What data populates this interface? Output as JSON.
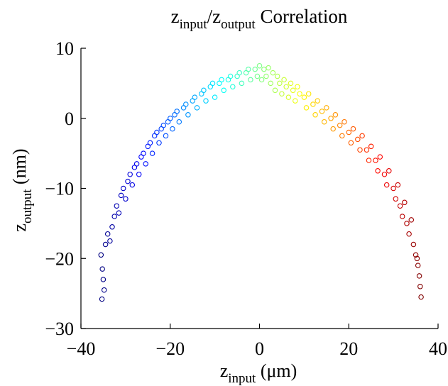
{
  "chart_data": {
    "type": "scatter",
    "title": {
      "base1": "z",
      "sub1": "input",
      "mid": "/z",
      "sub2": "output",
      "tail": " Correlation"
    },
    "xlabel": {
      "base": "z",
      "sub": "input",
      "tail": " (μm)"
    },
    "ylabel": {
      "base": "z",
      "sub": "output",
      "tail": " (nm)"
    },
    "xlim": [
      -40,
      40
    ],
    "ylim": [
      -30,
      10
    ],
    "xticks": [
      -40,
      -20,
      0,
      20,
      40
    ],
    "yticks": [
      -30,
      -20,
      -10,
      0,
      10
    ],
    "xtick_labels": [
      "−40",
      "−20",
      "0",
      "20",
      "40"
    ],
    "ytick_labels": [
      "−30",
      "−20",
      "−10",
      "0",
      "10"
    ],
    "grid": false,
    "legend": "none",
    "marker": "open-circle",
    "colormap": "jet (color follows x)",
    "points": [
      [
        -35.5,
        -19.5
      ],
      [
        -35.2,
        -21.5
      ],
      [
        -35.0,
        -23.0
      ],
      [
        -34.8,
        -24.5
      ],
      [
        -35.3,
        -25.8
      ],
      [
        -34.5,
        -18.0
      ],
      [
        -34.0,
        -16.5
      ],
      [
        -33.5,
        -17.5
      ],
      [
        -33.0,
        -15.5
      ],
      [
        -32.5,
        -14.0
      ],
      [
        -32.0,
        -12.5
      ],
      [
        -31.5,
        -13.5
      ],
      [
        -31.0,
        -11.0
      ],
      [
        -30.5,
        -10.0
      ],
      [
        -30.0,
        -11.5
      ],
      [
        -29.5,
        -9.0
      ],
      [
        -29.0,
        -8.0
      ],
      [
        -28.5,
        -9.5
      ],
      [
        -28.0,
        -7.0
      ],
      [
        -27.5,
        -6.5
      ],
      [
        -27.0,
        -8.0
      ],
      [
        -26.5,
        -5.5
      ],
      [
        -26.0,
        -5.0
      ],
      [
        -25.5,
        -6.5
      ],
      [
        -25.0,
        -4.0
      ],
      [
        -24.5,
        -3.5
      ],
      [
        -24.0,
        -5.0
      ],
      [
        -23.5,
        -2.5
      ],
      [
        -23.0,
        -2.0
      ],
      [
        -22.5,
        -3.5
      ],
      [
        -22.0,
        -1.5
      ],
      [
        -21.5,
        -1.0
      ],
      [
        -21.0,
        -2.5
      ],
      [
        -20.5,
        -0.5
      ],
      [
        -20.0,
        0.0
      ],
      [
        -19.5,
        -1.5
      ],
      [
        -19.0,
        0.5
      ],
      [
        -18.5,
        1.0
      ],
      [
        -18.0,
        -0.5
      ],
      [
        -17.0,
        1.5
      ],
      [
        -16.5,
        2.0
      ],
      [
        -16.0,
        0.5
      ],
      [
        -15.0,
        2.5
      ],
      [
        -14.5,
        3.0
      ],
      [
        -14.0,
        1.5
      ],
      [
        -13.0,
        3.5
      ],
      [
        -12.5,
        4.0
      ],
      [
        -12.0,
        2.5
      ],
      [
        -11.0,
        4.5
      ],
      [
        -10.5,
        5.0
      ],
      [
        -10.0,
        3.0
      ],
      [
        -9.0,
        5.0
      ],
      [
        -8.5,
        5.5
      ],
      [
        -8.0,
        4.0
      ],
      [
        -7.0,
        5.5
      ],
      [
        -6.5,
        6.0
      ],
      [
        -6.0,
        4.5
      ],
      [
        -5.0,
        6.0
      ],
      [
        -4.5,
        6.5
      ],
      [
        -4.0,
        5.0
      ],
      [
        -3.0,
        6.5
      ],
      [
        -2.5,
        7.0
      ],
      [
        -2.0,
        5.5
      ],
      [
        -1.0,
        7.0
      ],
      [
        -0.5,
        6.0
      ],
      [
        0.0,
        7.5
      ],
      [
        0.5,
        5.5
      ],
      [
        1.0,
        7.0
      ],
      [
        1.5,
        6.0
      ],
      [
        2.0,
        7.2
      ],
      [
        2.5,
        5.0
      ],
      [
        3.0,
        6.5
      ],
      [
        3.5,
        4.0
      ],
      [
        4.0,
        6.0
      ],
      [
        4.5,
        5.0
      ],
      [
        5.0,
        3.5
      ],
      [
        5.5,
        5.5
      ],
      [
        6.0,
        4.5
      ],
      [
        6.5,
        3.0
      ],
      [
        7.0,
        5.0
      ],
      [
        7.5,
        4.0
      ],
      [
        8.0,
        2.5
      ],
      [
        8.5,
        4.5
      ],
      [
        9.0,
        3.5
      ],
      [
        10.0,
        3.0
      ],
      [
        10.5,
        1.5
      ],
      [
        11.0,
        3.5
      ],
      [
        12.0,
        2.0
      ],
      [
        12.5,
        0.5
      ],
      [
        13.0,
        2.5
      ],
      [
        14.0,
        1.0
      ],
      [
        14.5,
        -0.5
      ],
      [
        15.0,
        1.5
      ],
      [
        16.0,
        0.0
      ],
      [
        16.5,
        -1.5
      ],
      [
        17.0,
        0.5
      ],
      [
        18.0,
        -1.0
      ],
      [
        18.5,
        -2.5
      ],
      [
        19.0,
        -0.5
      ],
      [
        20.0,
        -2.0
      ],
      [
        20.5,
        -3.5
      ],
      [
        21.0,
        -1.5
      ],
      [
        22.0,
        -3.0
      ],
      [
        22.5,
        -4.5
      ],
      [
        23.0,
        -2.5
      ],
      [
        24.0,
        -4.5
      ],
      [
        24.5,
        -6.0
      ],
      [
        25.0,
        -4.0
      ],
      [
        26.0,
        -6.0
      ],
      [
        26.5,
        -7.5
      ],
      [
        27.0,
        -5.5
      ],
      [
        28.0,
        -8.0
      ],
      [
        28.5,
        -9.5
      ],
      [
        29.0,
        -7.5
      ],
      [
        30.0,
        -10.0
      ],
      [
        30.5,
        -11.5
      ],
      [
        31.0,
        -9.5
      ],
      [
        31.5,
        -12.5
      ],
      [
        32.0,
        -14.0
      ],
      [
        32.5,
        -12.0
      ],
      [
        33.0,
        -15.0
      ],
      [
        33.5,
        -16.5
      ],
      [
        34.0,
        -14.5
      ],
      [
        34.5,
        -18.0
      ],
      [
        35.0,
        -19.5
      ],
      [
        35.5,
        -21.0
      ],
      [
        35.8,
        -22.5
      ],
      [
        36.0,
        -24.0
      ],
      [
        36.2,
        -25.5
      ],
      [
        35.3,
        -20.0
      ]
    ]
  }
}
